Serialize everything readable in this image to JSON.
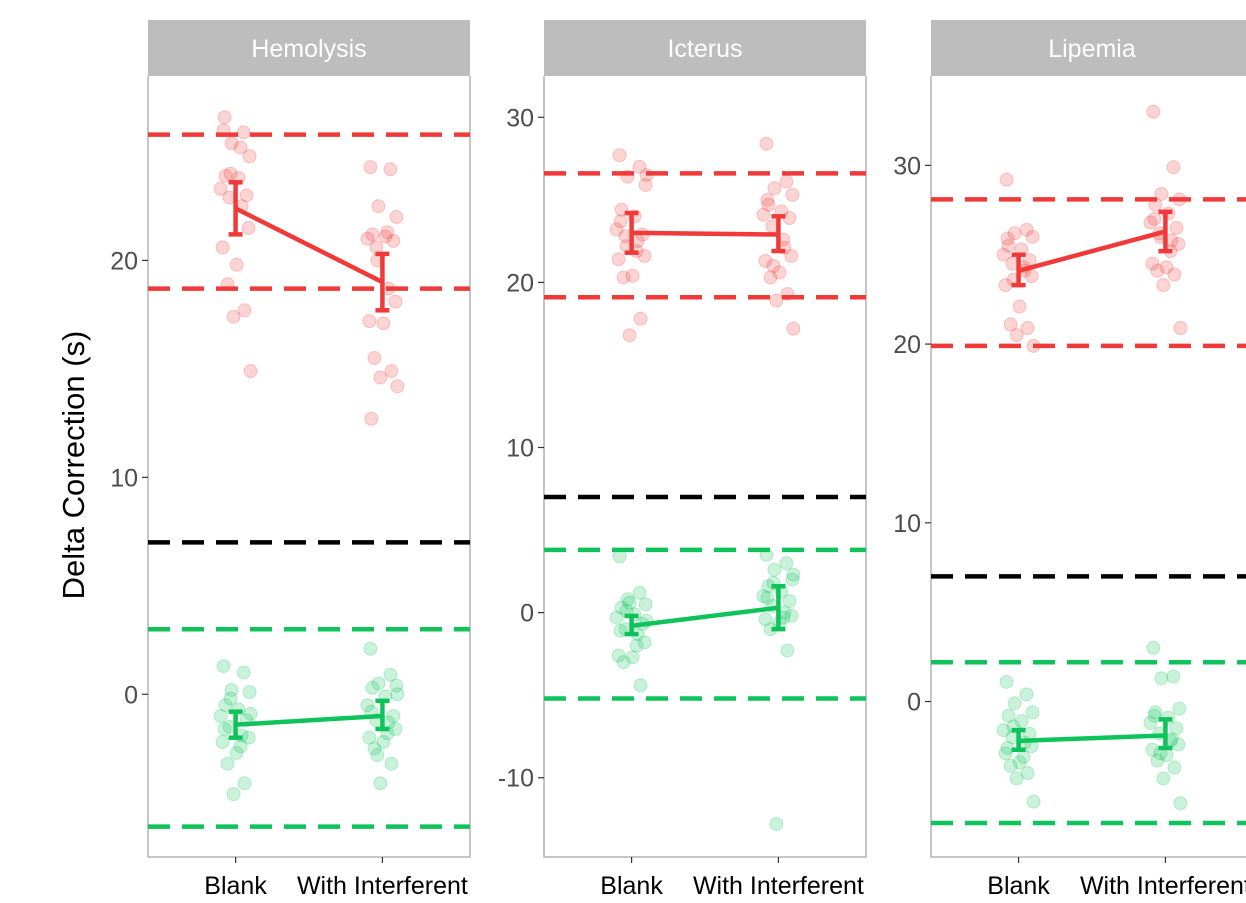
{
  "chart_data": {
    "type": "scatter",
    "ylabel": "Delta Correction (s)",
    "categories": [
      "Blank",
      "With Interferent"
    ],
    "colors": {
      "high": "#f03a3a",
      "low": "#0dc35a",
      "threshold": "#000000",
      "strip": "#bdbdbd",
      "strip_text": "#ffffff",
      "panel_border": "#b3b3b3"
    },
    "panels": [
      {
        "name": "Hemolysis",
        "ylim": [
          -7.5,
          28.5
        ],
        "yticks": [
          0,
          10,
          20
        ],
        "hlines": [
          {
            "y": 25.8,
            "color": "#f03a3a"
          },
          {
            "y": 18.7,
            "color": "#f03a3a"
          },
          {
            "y": 7.0,
            "color": "#000000"
          },
          {
            "y": 3.0,
            "color": "#0dc35a"
          },
          {
            "y": -6.1,
            "color": "#0dc35a"
          }
        ],
        "series": [
          {
            "group": "high",
            "means": [
              22.4,
              19.0
            ],
            "err_low": [
              21.2,
              17.7
            ],
            "err_high": [
              23.6,
              20.3
            ],
            "points": [
              [
                26.0,
                25.9,
                25.4,
                24.8,
                23.9,
                23.8,
                23.3,
                23.0,
                22.9,
                22.5,
                21.5,
                20.6,
                19.8,
                18.9,
                17.7,
                17.4,
                14.9,
                26.6,
                25.2,
                24.0
              ],
              [
                24.3,
                24.2,
                22.5,
                22.0,
                21.2,
                21.1,
                21.0,
                20.9,
                20.6,
                18.7,
                18.1,
                17.2,
                17.1,
                15.5,
                14.9,
                14.6,
                14.2,
                12.7,
                21.3,
                20.0
              ]
            ]
          },
          {
            "group": "low",
            "means": [
              -1.4,
              -1.0
            ],
            "err_low": [
              -2.0,
              -1.6
            ],
            "err_high": [
              -0.8,
              -0.3
            ],
            "points": [
              [
                1.3,
                1.0,
                0.2,
                0.1,
                -0.5,
                -0.7,
                -1.0,
                -1.2,
                -1.5,
                -1.9,
                -2.0,
                -2.2,
                -2.7,
                -3.2,
                -4.1,
                -4.6,
                -0.9,
                -1.6,
                -2.4,
                -0.2
              ],
              [
                2.1,
                0.9,
                0.5,
                0.4,
                0.3,
                -0.1,
                -0.5,
                -1.0,
                -1.2,
                -1.3,
                -1.6,
                -2.0,
                -2.2,
                -2.5,
                -3.2,
                -4.1,
                0.0,
                -0.8,
                -1.8,
                -2.8
              ]
            ]
          }
        ]
      },
      {
        "name": "Icterus",
        "ylim": [
          -14.8,
          32.5
        ],
        "yticks": [
          -10,
          0,
          10,
          20,
          30
        ],
        "hlines": [
          {
            "y": 26.6,
            "color": "#f03a3a"
          },
          {
            "y": 19.1,
            "color": "#f03a3a"
          },
          {
            "y": 7.0,
            "color": "#000000"
          },
          {
            "y": 3.8,
            "color": "#0dc35a"
          },
          {
            "y": -5.2,
            "color": "#0dc35a"
          }
        ],
        "series": [
          {
            "group": "high",
            "means": [
              23.0,
              22.9
            ],
            "err_low": [
              21.8,
              21.9
            ],
            "err_high": [
              24.2,
              24.0
            ],
            "points": [
              [
                27.7,
                27.0,
                26.4,
                25.9,
                24.4,
                24.0,
                23.2,
                22.9,
                22.8,
                22.5,
                21.6,
                21.4,
                20.4,
                20.3,
                17.8,
                16.8,
                26.5,
                23.7,
                21.9,
                22.2
              ],
              [
                28.4,
                26.1,
                25.7,
                25.3,
                24.7,
                24.3,
                24.1,
                23.9,
                23.4,
                22.1,
                21.6,
                21.3,
                20.6,
                20.3,
                19.3,
                18.9,
                17.2,
                25.0,
                22.6,
                21.0
              ]
            ]
          },
          {
            "group": "low",
            "means": [
              -0.8,
              0.3
            ],
            "err_low": [
              -1.3,
              -1.0
            ],
            "err_high": [
              -0.2,
              1.6
            ],
            "points": [
              [
                3.4,
                1.2,
                0.8,
                0.5,
                0.3,
                -0.1,
                -0.3,
                -0.7,
                -1.0,
                -1.3,
                -1.8,
                -2.6,
                -2.7,
                -3.0,
                -4.4,
                0.6,
                -0.5,
                -1.1,
                -2.0,
                0.1
              ],
              [
                3.5,
                3.0,
                2.6,
                2.0,
                1.6,
                1.3,
                1.0,
                0.7,
                0.4,
                0.0,
                -0.2,
                -0.4,
                -0.6,
                -1.0,
                -2.3,
                -12.8,
                2.3,
                0.9,
                -0.3,
                1.8
              ]
            ]
          }
        ]
      },
      {
        "name": "Lipemia",
        "ylim": [
          -8.7,
          35.0
        ],
        "yticks": [
          0,
          10,
          20,
          30
        ],
        "hlines": [
          {
            "y": 28.1,
            "color": "#f03a3a"
          },
          {
            "y": 19.9,
            "color": "#f03a3a"
          },
          {
            "y": 7.0,
            "color": "#000000"
          },
          {
            "y": 2.2,
            "color": "#0dc35a"
          },
          {
            "y": -6.8,
            "color": "#0dc35a"
          }
        ],
        "series": [
          {
            "group": "high",
            "means": [
              24.1,
              26.3
            ],
            "err_low": [
              23.3,
              25.2
            ],
            "err_high": [
              25.0,
              27.4
            ],
            "points": [
              [
                29.2,
                26.4,
                26.2,
                26.0,
                25.5,
                25.3,
                25.0,
                24.7,
                24.5,
                24.1,
                23.8,
                23.3,
                22.1,
                21.1,
                20.9,
                20.5,
                19.9,
                25.9,
                24.3,
                23.6
              ],
              [
                33.0,
                29.9,
                28.4,
                28.1,
                27.8,
                27.3,
                26.8,
                26.5,
                26.2,
                25.8,
                25.6,
                24.5,
                24.3,
                24.1,
                23.9,
                23.3,
                20.9,
                27.0,
                25.2,
                26.0
              ]
            ]
          },
          {
            "group": "low",
            "means": [
              -2.2,
              -1.9
            ],
            "err_low": [
              -2.7,
              -2.6
            ],
            "err_high": [
              -1.6,
              -1.0
            ],
            "points": [
              [
                1.1,
                0.4,
                -0.1,
                -0.6,
                -0.8,
                -1.1,
                -1.6,
                -1.8,
                -2.0,
                -2.3,
                -2.5,
                -2.9,
                -3.4,
                -3.6,
                -4.0,
                -4.3,
                -5.6,
                -2.6,
                -3.1,
                -1.4
              ],
              [
                3.0,
                1.4,
                1.3,
                -0.4,
                -0.6,
                -0.9,
                -1.2,
                -1.5,
                -1.8,
                -2.1,
                -2.4,
                -2.7,
                -3.0,
                -3.3,
                -3.7,
                -4.3,
                -5.7,
                -0.8,
                -2.2,
                -2.9
              ]
            ]
          }
        ]
      }
    ]
  }
}
